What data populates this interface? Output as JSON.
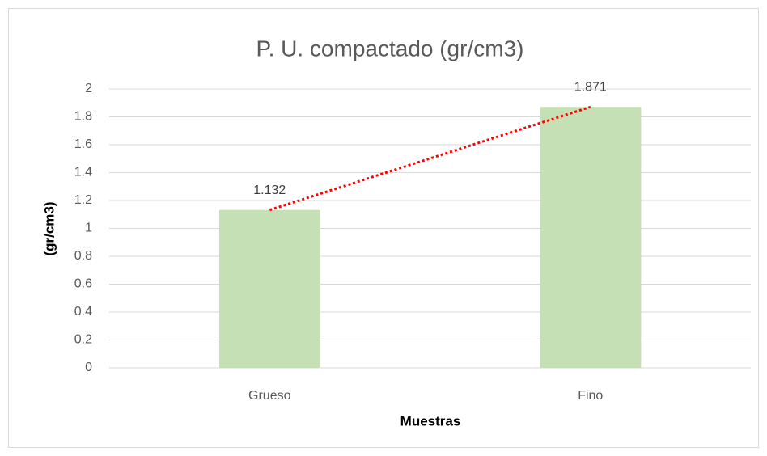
{
  "chart_data": {
    "type": "bar",
    "title": "P. U. compactado (gr/cm3)",
    "x_label": "Muestras",
    "y_label": "(gr/cm3)",
    "categories": [
      "Grueso",
      "Fino"
    ],
    "values": [
      1.132,
      1.871
    ],
    "color": "#c5e0b4",
    "ylim": [
      0,
      2
    ],
    "yticks": [
      0,
      0.2,
      0.4,
      0.6,
      0.8,
      1,
      1.2,
      1.4,
      1.6,
      1.8,
      2
    ],
    "grid": true,
    "data_labels": true,
    "trendline": {
      "color": "#ff0000",
      "style": "dotted"
    }
  }
}
